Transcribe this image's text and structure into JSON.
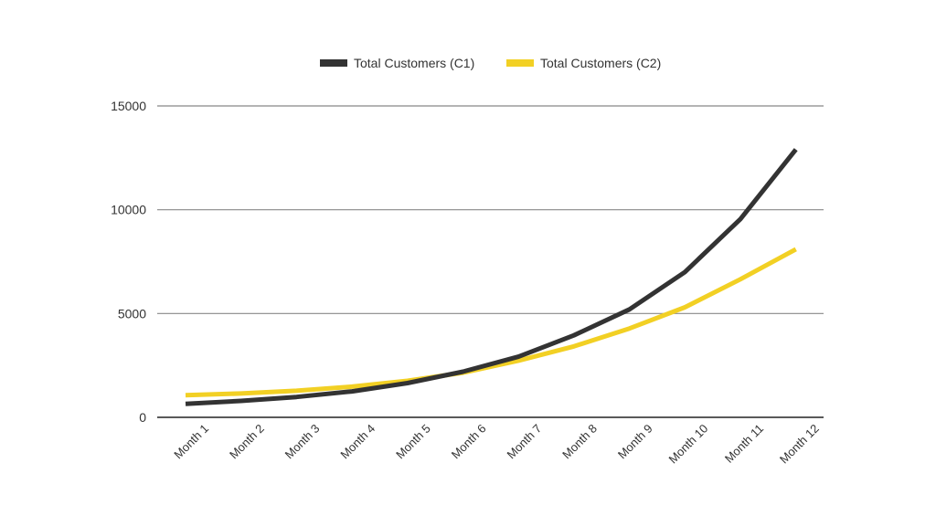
{
  "chart_data": {
    "type": "line",
    "categories": [
      "Month 1",
      "Month 2",
      "Month 3",
      "Month 4",
      "Month 5",
      "Month 6",
      "Month 7",
      "Month 8",
      "Month 9",
      "Month 10",
      "Month 11",
      "Month 12"
    ],
    "series": [
      {
        "name": "Total Customers (C1)",
        "color": "#333333",
        "values": [
          650,
          790,
          980,
          1250,
          1650,
          2200,
          2920,
          3950,
          5200,
          7000,
          9550,
          12900
        ]
      },
      {
        "name": "Total Customers (C2)",
        "color": "#f2d024",
        "values": [
          1070,
          1150,
          1280,
          1480,
          1760,
          2150,
          2730,
          3420,
          4280,
          5300,
          6650,
          8100
        ]
      }
    ],
    "ylim": [
      0,
      15000
    ],
    "yticks": [
      "0",
      "5000",
      "10000",
      "15000"
    ],
    "grid": true,
    "legend_position": "top-center",
    "title": "",
    "xlabel": "",
    "ylabel": ""
  }
}
